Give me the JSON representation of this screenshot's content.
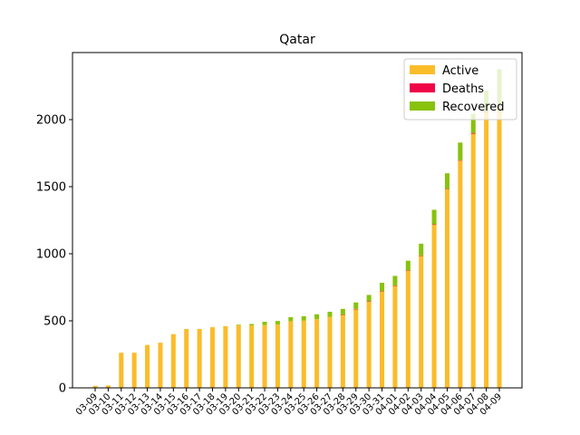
{
  "chart_data": {
    "type": "bar",
    "stacked": true,
    "title": "Qatar",
    "xlabel": "",
    "ylabel": "",
    "ylim": [
      0,
      2500
    ],
    "yticks": [
      0,
      500,
      1000,
      1500,
      2000
    ],
    "legend_position": "top-right",
    "grid": false,
    "categories": [
      "03-09",
      "03-10",
      "03-11",
      "03-12",
      "03-13",
      "03-14",
      "03-15",
      "03-16",
      "03-17",
      "03-18",
      "03-19",
      "03-20",
      "03-21",
      "03-22",
      "03-23",
      "03-24",
      "03-25",
      "03-26",
      "03-27",
      "03-28",
      "03-29",
      "03-30",
      "03-31",
      "04-01",
      "04-02",
      "04-03",
      "04-04",
      "04-05",
      "04-06",
      "04-07",
      "04-08",
      "04-09"
    ],
    "series": [
      {
        "name": "Active",
        "color": "#fbbc2a",
        "values": [
          15,
          18,
          262,
          262,
          320,
          337,
          401,
          439,
          439,
          452,
          460,
          468,
          466,
          469,
          472,
          497,
          501,
          512,
          530,
          545,
          588,
          645,
          720,
          762,
          874,
          985,
          1216,
          1481,
          1694,
          1895,
          2057,
          2094
        ]
      },
      {
        "name": "Deaths",
        "color": "#ef0548",
        "values": [
          0,
          0,
          0,
          0,
          0,
          0,
          0,
          0,
          0,
          0,
          0,
          0,
          0,
          0,
          0,
          0,
          0,
          0,
          0,
          1,
          1,
          1,
          1,
          2,
          2,
          2,
          3,
          3,
          4,
          6,
          6,
          6
        ]
      },
      {
        "name": "Recovered",
        "color": "#88c20c",
        "values": [
          0,
          0,
          0,
          0,
          0,
          0,
          0,
          0,
          0,
          0,
          0,
          4,
          10,
          24,
          27,
          30,
          33,
          37,
          37,
          43,
          48,
          47,
          63,
          71,
          72,
          88,
          109,
          116,
          131,
          143,
          153,
          276
        ]
      }
    ]
  }
}
